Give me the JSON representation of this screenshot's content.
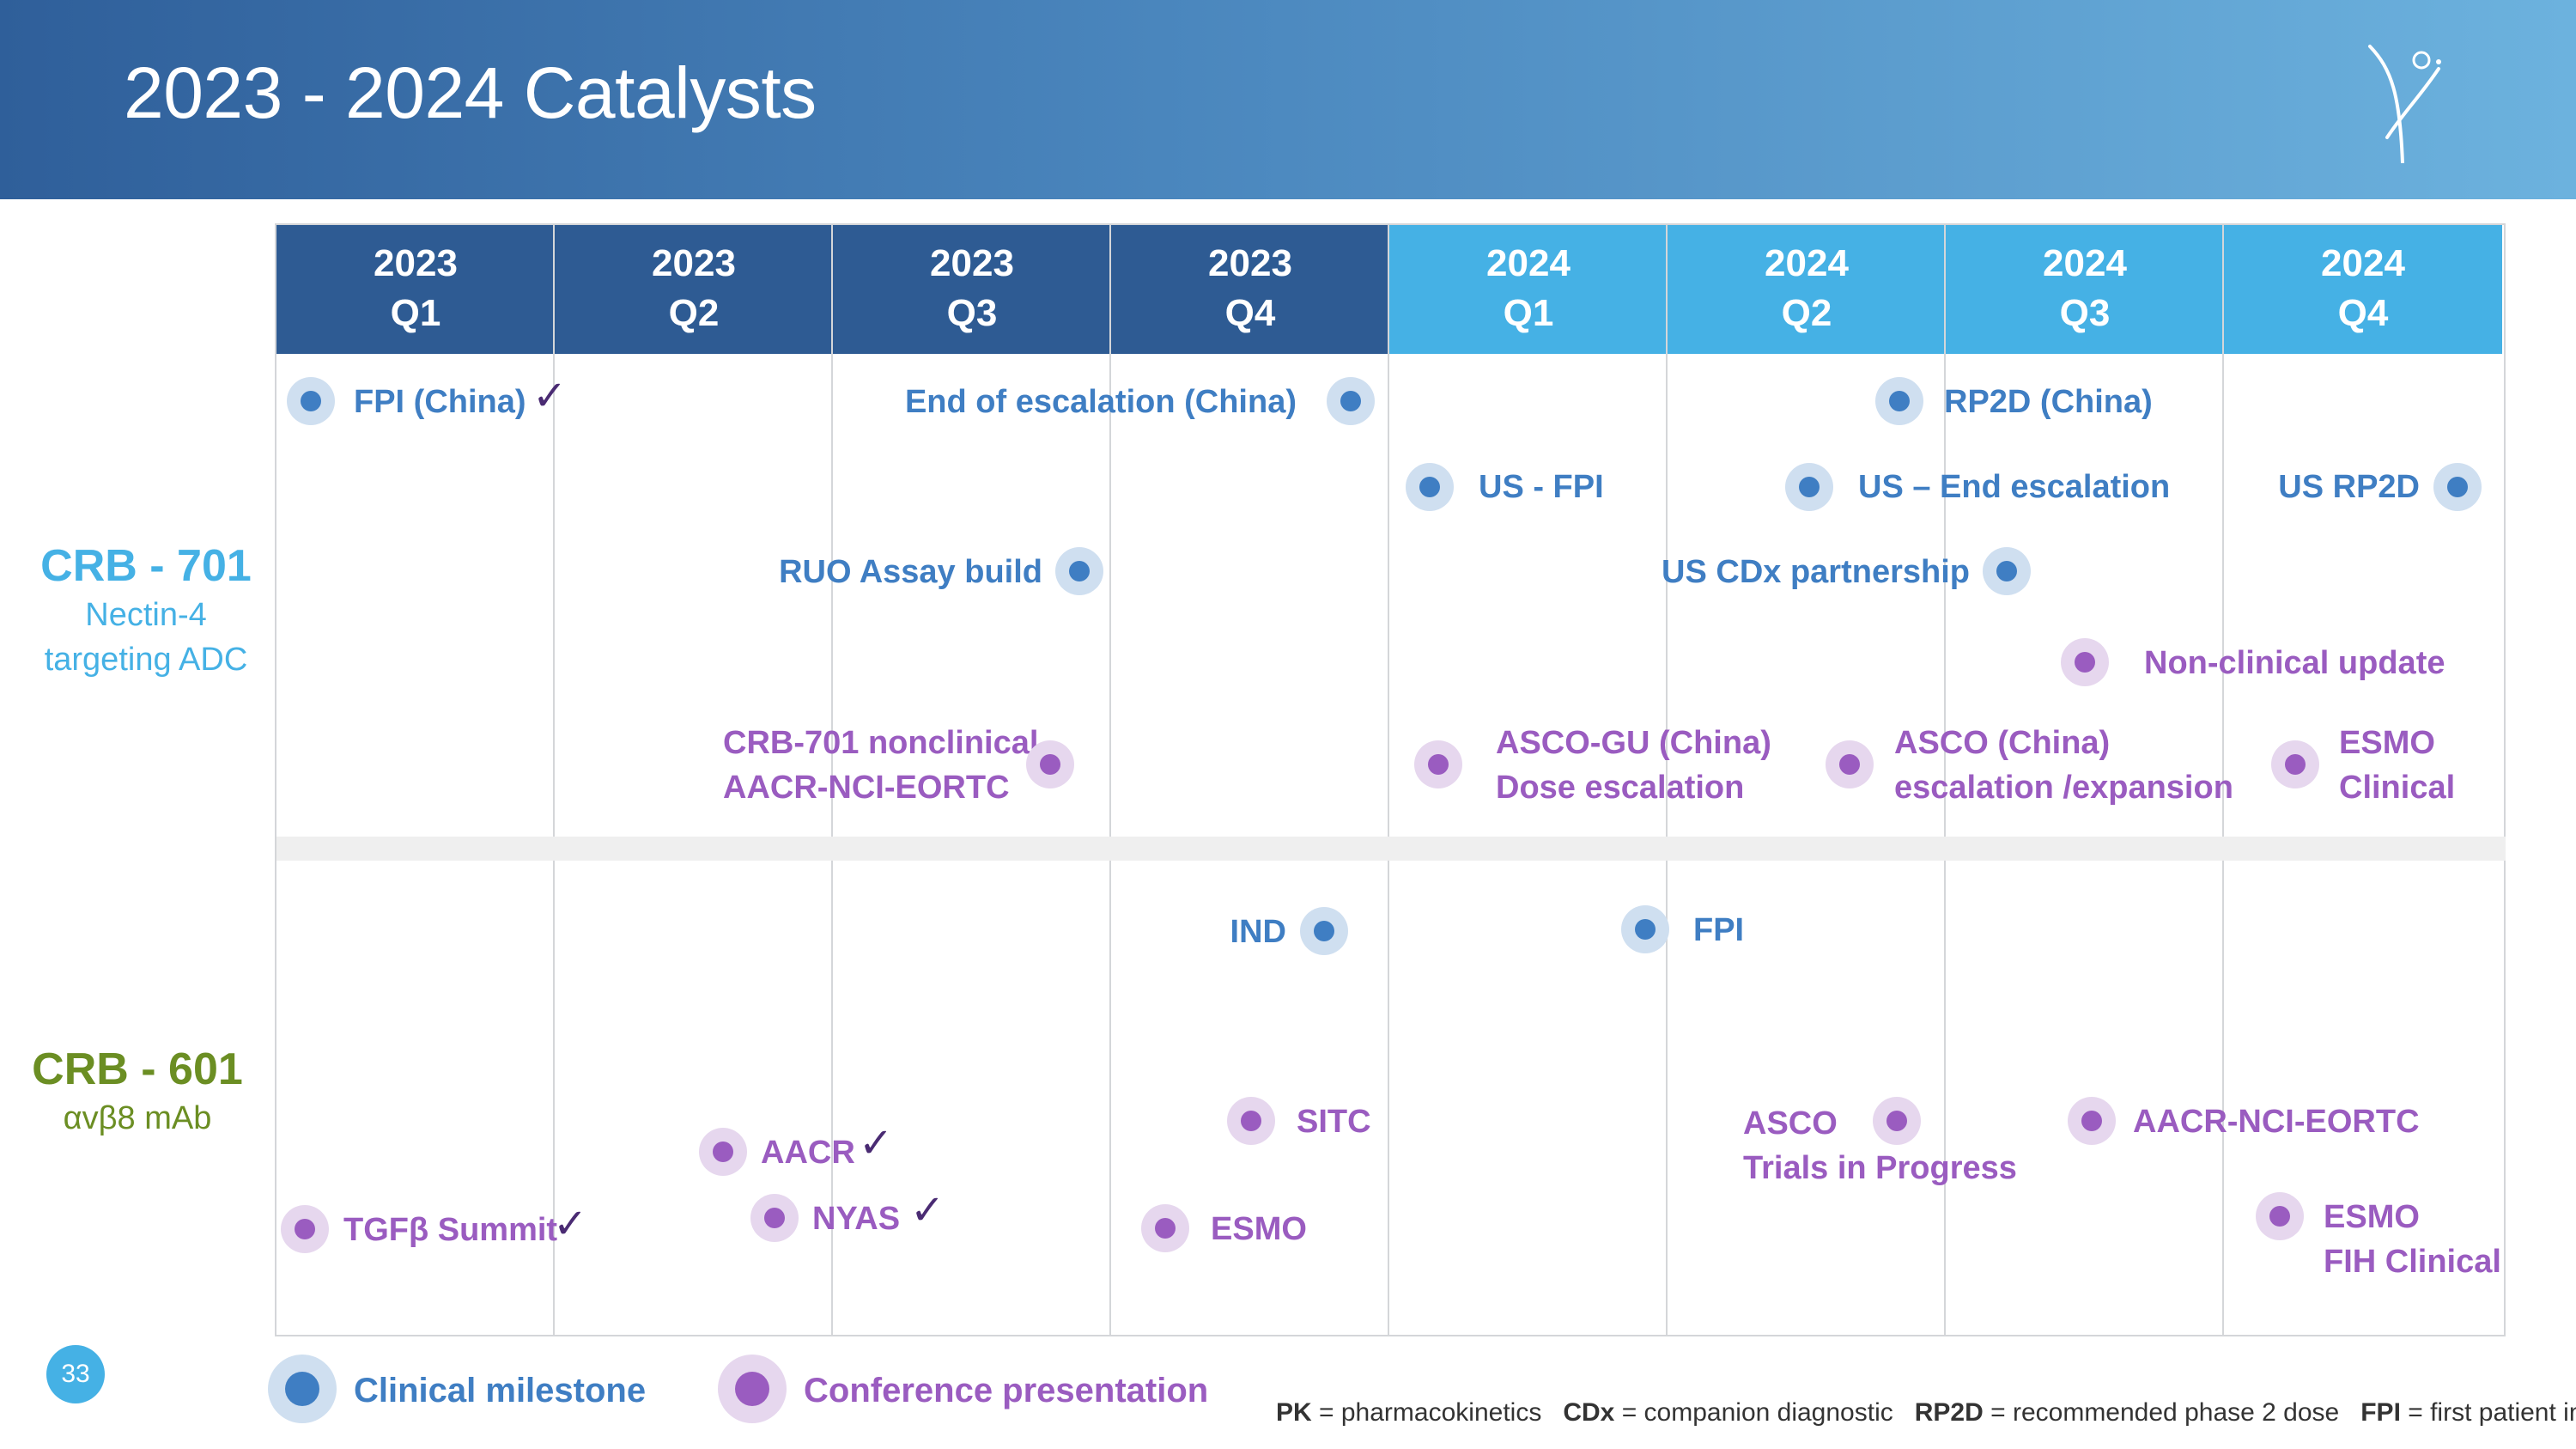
{
  "header": {
    "title": "2023 - 2024 Catalysts"
  },
  "quarters": [
    {
      "year": "2023",
      "q": "Q1"
    },
    {
      "year": "2023",
      "q": "Q2"
    },
    {
      "year": "2023",
      "q": "Q3"
    },
    {
      "year": "2023",
      "q": "Q4"
    },
    {
      "year": "2024",
      "q": "Q1"
    },
    {
      "year": "2024",
      "q": "Q2"
    },
    {
      "year": "2024",
      "q": "Q3"
    },
    {
      "year": "2024",
      "q": "Q4"
    }
  ],
  "programs": [
    {
      "name": "CRB - 701",
      "subtitle_line1": "Nectin-4",
      "subtitle_line2": "targeting ADC",
      "color": "#45b1e5"
    },
    {
      "name": "CRB - 601",
      "subtitle_line1": "αvβ8 mAb",
      "color": "#6b8e23"
    }
  ],
  "milestones": {
    "crb701": [
      {
        "text": "FPI (China)",
        "type": "clinical",
        "done": true
      },
      {
        "text": "End of escalation (China)",
        "type": "clinical"
      },
      {
        "text": "RP2D (China)",
        "type": "clinical"
      },
      {
        "text": "US - FPI",
        "type": "clinical"
      },
      {
        "text": "US – End escalation",
        "type": "clinical"
      },
      {
        "text": "US RP2D",
        "type": "clinical"
      },
      {
        "text": "RUO Assay build",
        "type": "clinical"
      },
      {
        "text": "US CDx partnership",
        "type": "clinical"
      },
      {
        "text": "Non-clinical update",
        "type": "conference"
      },
      {
        "line1": "CRB-701 nonclinical",
        "line2": "AACR-NCI-EORTC",
        "type": "conference"
      },
      {
        "line1": "ASCO-GU (China)",
        "line2": "Dose escalation",
        "type": "conference"
      },
      {
        "line1": "ASCO (China)",
        "line2": "escalation /expansion",
        "type": "conference"
      },
      {
        "line1": "ESMO",
        "line2": "Clinical",
        "type": "conference"
      }
    ],
    "crb601": [
      {
        "text": "IND",
        "type": "clinical"
      },
      {
        "text": "FPI",
        "type": "clinical"
      },
      {
        "text": "SITC",
        "type": "conference"
      },
      {
        "line1": "ASCO",
        "line2": "Trials in Progress",
        "type": "conference"
      },
      {
        "text": "AACR-NCI-EORTC",
        "type": "conference"
      },
      {
        "text": "AACR",
        "type": "conference",
        "done": true
      },
      {
        "text": "NYAS",
        "type": "conference",
        "done": true
      },
      {
        "text": "TGFβ Summit",
        "type": "conference",
        "done": true
      },
      {
        "text": "ESMO",
        "type": "conference"
      },
      {
        "line1": "ESMO",
        "line2": "FIH Clinical",
        "type": "conference"
      }
    ]
  },
  "legend": {
    "clinical": "Clinical milestone",
    "conference": "Conference presentation"
  },
  "abbreviations": [
    {
      "abbr": "PK",
      "def": " = pharmacokinetics"
    },
    {
      "abbr": "CDx",
      "def": " = companion diagnostic"
    },
    {
      "abbr": "RP2D",
      "def": " = recommended phase 2 dose"
    },
    {
      "abbr": "FPI",
      "def": " = first patient in"
    }
  ],
  "check_glyph": "✓",
  "page_number": "33",
  "colors": {
    "header_dark": "#2f5f9a",
    "header_light": "#6cb2de",
    "q2023": "#2e5b93",
    "q2024": "#45b1e5",
    "clinical": "#3f7ec3",
    "conference": "#9a5cc0",
    "check": "#4a2b73"
  },
  "icons": [
    "company-logo-icon",
    "check-icon"
  ]
}
